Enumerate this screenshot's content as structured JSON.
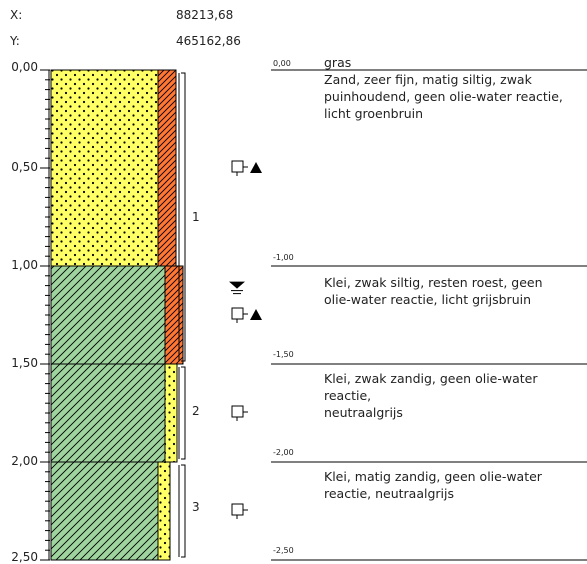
{
  "coordinates": {
    "x_label": "X:",
    "x_value": "88213,68",
    "y_label": "Y:",
    "y_value": "465162,86"
  },
  "depth_axis": {
    "ticks": [
      "0,00",
      "0,50",
      "1,00",
      "1,50",
      "2,00",
      "2,50"
    ],
    "max_depth": 2.5,
    "unit": "m"
  },
  "layers": [
    {
      "from": 0.0,
      "to": 1.0,
      "main": "sand",
      "side": "peat"
    },
    {
      "from": 1.0,
      "to": 1.5,
      "main": "clay",
      "side": "peat"
    },
    {
      "from": 1.5,
      "to": 2.0,
      "main": "clay",
      "side": "sand"
    },
    {
      "from": 2.0,
      "to": 2.5,
      "main": "clay",
      "side": "sand"
    }
  ],
  "colors": {
    "sand": "#ffff66",
    "clay": "#9fd49f",
    "peat": "#ff7733",
    "line": "#000000"
  },
  "samples": [
    {
      "label": "1",
      "from": 0.0,
      "to": 1.5
    },
    {
      "label": "2",
      "from": 1.5,
      "to": 2.0
    },
    {
      "label": "3",
      "from": 2.0,
      "to": 2.5
    }
  ],
  "markers": [
    {
      "depth": 0.5,
      "type": "sample",
      "triangle": true
    },
    {
      "depth": 1.25,
      "type": "sample",
      "triangle": true
    },
    {
      "depth": 1.75,
      "type": "sample",
      "triangle": false
    },
    {
      "depth": 2.25,
      "type": "sample",
      "triangle": false
    },
    {
      "depth": 1.1,
      "type": "groundwater"
    }
  ],
  "descriptions": [
    {
      "level": "0,00",
      "text": "gras\nZand, zeer fijn, matig siltig, zwak\npuinhoudend, geen olie-water reactie,\nlicht groenbruin"
    },
    {
      "level": "-1,00",
      "text": "Klei, zwak siltig, resten roest, geen\nolie-water reactie, licht grijsbruin"
    },
    {
      "level": "-1,50",
      "text": "Klei, zwak zandig, geen olie-water reactie,\nneutraalgrijs"
    },
    {
      "level": "-2,00",
      "text": "Klei, matig zandig, geen olie-water\nreactie, neutraalgrijs"
    },
    {
      "level": "-2,50",
      "text": ""
    }
  ]
}
